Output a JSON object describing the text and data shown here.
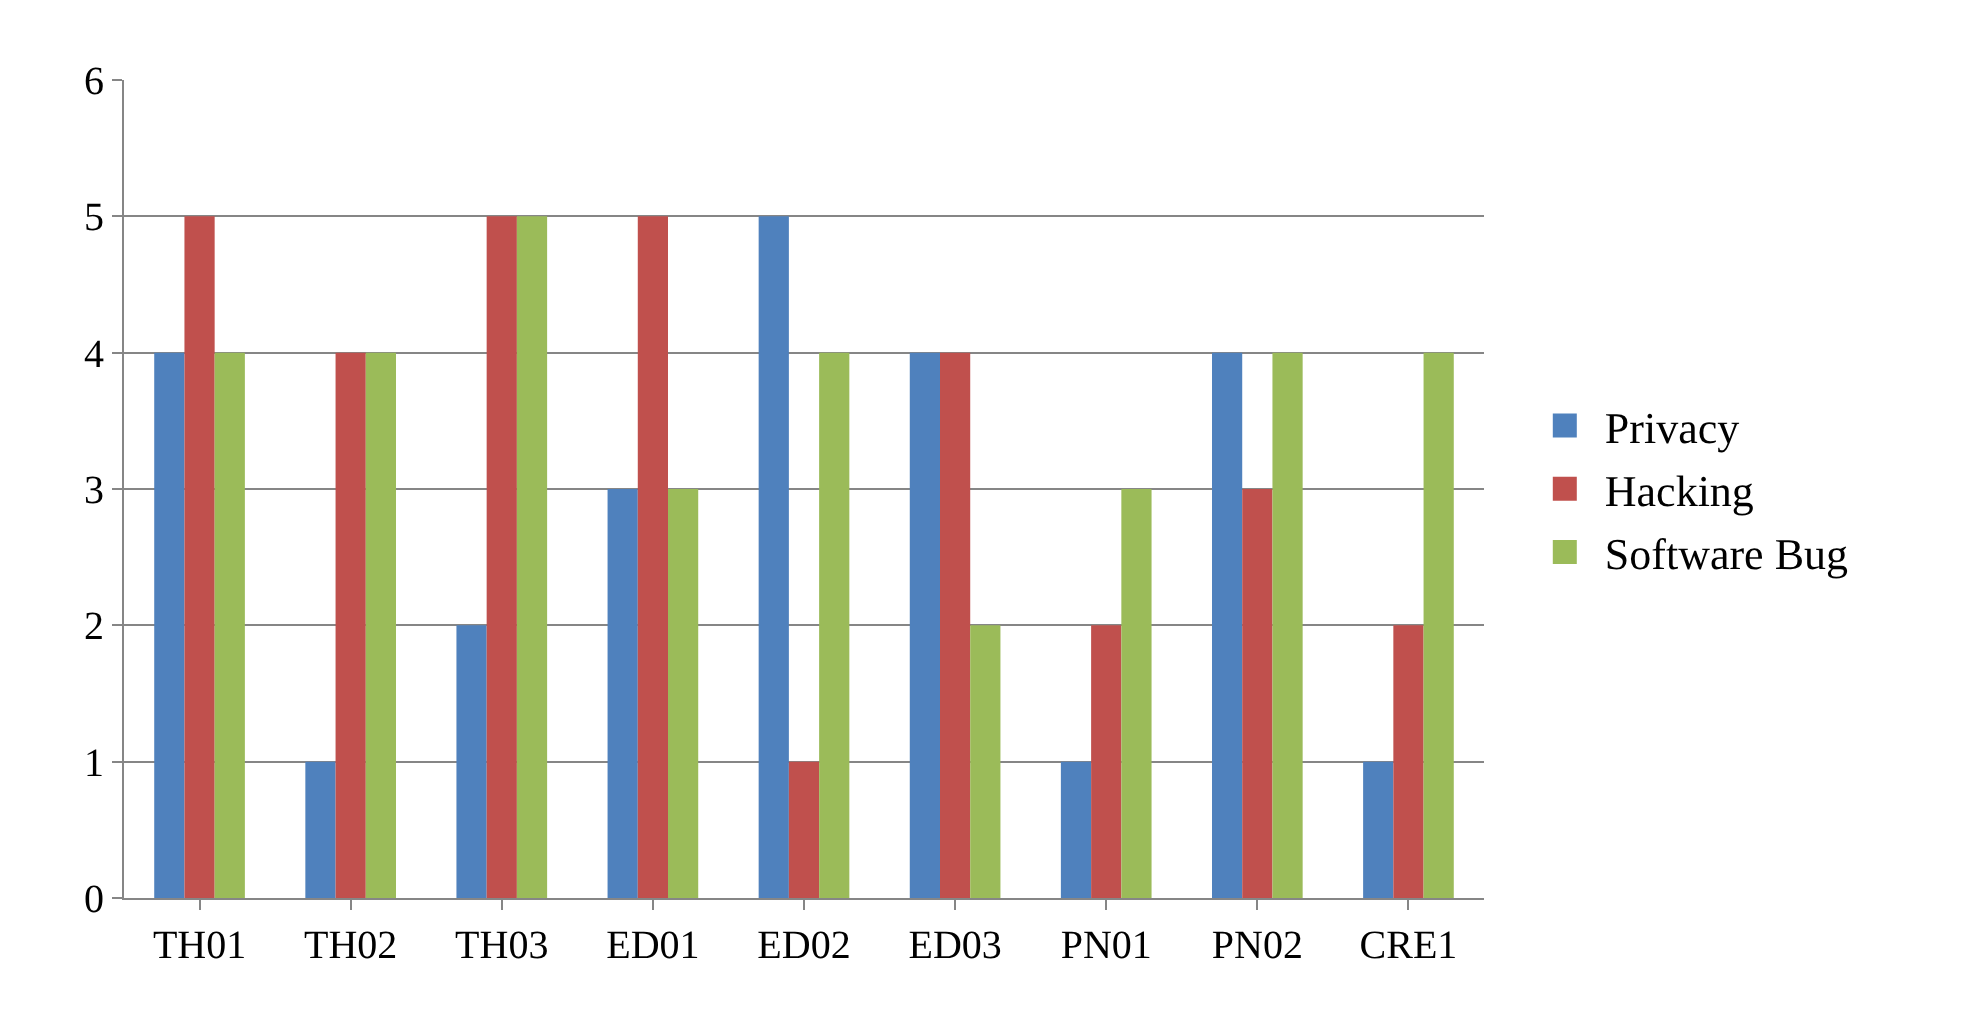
{
  "chart_data": {
    "type": "bar",
    "categories": [
      "TH01",
      "TH02",
      "TH03",
      "ED01",
      "ED02",
      "ED03",
      "PN01",
      "PN02",
      "CRE1"
    ],
    "series": [
      {
        "name": "Privacy",
        "color": "#4f81bd",
        "values": [
          4,
          1,
          2,
          3,
          5,
          4,
          1,
          4,
          1
        ]
      },
      {
        "name": "Hacking",
        "color": "#c0504d",
        "values": [
          5,
          4,
          5,
          5,
          1,
          4,
          2,
          3,
          2
        ]
      },
      {
        "name": "Software Bug",
        "color": "#9bbb59",
        "values": [
          4,
          4,
          5,
          3,
          4,
          2,
          3,
          4,
          4
        ]
      }
    ],
    "ylim": [
      0,
      6
    ],
    "yticks": [
      0,
      1,
      2,
      3,
      4,
      5,
      6
    ],
    "grid": "y",
    "legend": "right"
  }
}
